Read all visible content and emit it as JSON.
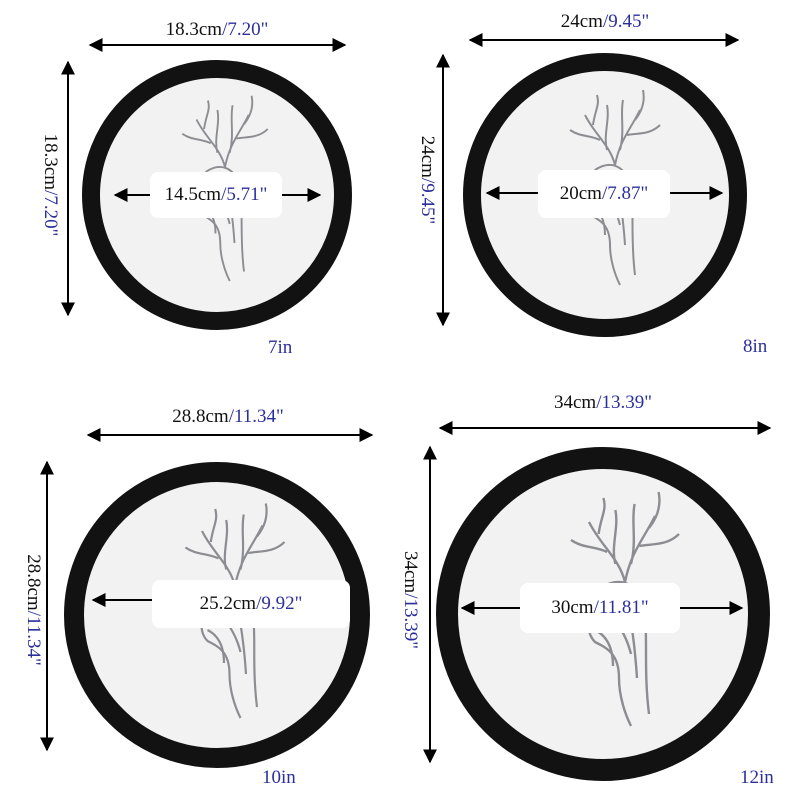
{
  "frames": [
    {
      "size": "7in",
      "outer_cm": "18.3cm",
      "outer_in": "/7.20\"",
      "inner_cm": "14.5cm",
      "inner_in": "/5.71\""
    },
    {
      "size": "8in",
      "outer_cm": "24cm",
      "outer_in": "/9.45\"",
      "inner_cm": "20cm",
      "inner_in": "/7.87\""
    },
    {
      "size": "10in",
      "outer_cm": "28.8cm",
      "outer_in": "/11.34\"",
      "inner_cm": "25.2cm",
      "inner_in": "/9.92\""
    },
    {
      "size": "12in",
      "outer_cm": "34cm",
      "outer_in": "/13.39\"",
      "inner_cm": "30cm",
      "inner_in": "/11.81\""
    }
  ],
  "colors": {
    "frame": "#111111",
    "mat": "#f3f2f2",
    "inch_text": "#2b2f9c"
  }
}
